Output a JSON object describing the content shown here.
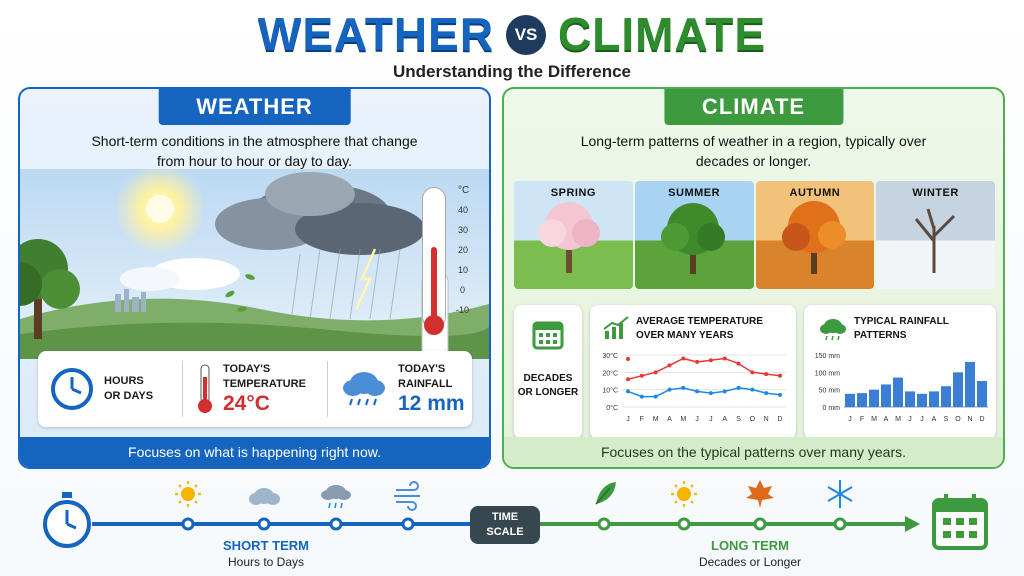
{
  "title": {
    "weather": "WEATHER",
    "vs": "VS",
    "climate": "CLIMATE"
  },
  "subtitle": "Understanding the Difference",
  "weather_panel": {
    "heading": "WEATHER",
    "description": "Short-term conditions in the atmosphere that change from hour to hour or day to day.",
    "thermometer": {
      "unit": "°C",
      "ticks": [
        "40",
        "30",
        "20",
        "10",
        "0",
        "-10"
      ]
    },
    "stats": {
      "duration": {
        "label_line1": "HOURS",
        "label_line2": "OR DAYS"
      },
      "temperature": {
        "label_line1": "TODAY'S",
        "label_line2": "TEMPERATURE",
        "value": "24°C"
      },
      "rainfall": {
        "label_line1": "TODAY'S",
        "label_line2": "RAINFALL",
        "value": "12 mm"
      }
    },
    "footer": "Focuses on what is happening right now.",
    "colors": {
      "primary": "#1565c0",
      "temp": "#d32f2f"
    }
  },
  "climate_panel": {
    "heading": "CLIMATE",
    "description": "Long-term patterns of weather in a region, typically over decades or longer.",
    "seasons": [
      "SPRING",
      "SUMMER",
      "AUTUMN",
      "WINTER"
    ],
    "decades": {
      "line1": "DECADES",
      "line2": "OR LONGER"
    },
    "footer": "Focuses on the typical patterns over many years.",
    "colors": {
      "primary": "#3e9a3e"
    }
  },
  "chart_data": [
    {
      "type": "line",
      "title": "AVERAGE TEMPERATURE OVER MANY YEARS",
      "categories": [
        "J",
        "F",
        "M",
        "A",
        "M",
        "J",
        "J",
        "A",
        "S",
        "O",
        "N",
        "D"
      ],
      "y_ticks": [
        "30°C",
        "20°C",
        "10°C",
        "0°C"
      ],
      "ylim": [
        0,
        30
      ],
      "series": [
        {
          "color": "#e53935",
          "values": [
            16,
            18,
            20,
            24,
            28,
            26,
            27,
            28,
            25,
            20,
            19,
            18
          ]
        },
        {
          "color": "#1e88e5",
          "values": [
            9,
            6,
            6,
            10,
            11,
            9,
            8,
            9,
            11,
            10,
            8,
            7
          ]
        }
      ],
      "legend_markers": [
        "#e53935",
        "#1e88e5"
      ]
    },
    {
      "type": "bar",
      "title": "TYPICAL RAINFALL PATTERNS",
      "categories": [
        "J",
        "F",
        "M",
        "A",
        "M",
        "J",
        "J",
        "A",
        "S",
        "O",
        "N",
        "D"
      ],
      "y_ticks": [
        "150 mm",
        "100 mm",
        "50 mm",
        "0 mm"
      ],
      "ylim": [
        0,
        150
      ],
      "values": [
        38,
        40,
        50,
        65,
        85,
        45,
        38,
        45,
        60,
        100,
        130,
        75
      ],
      "color": "#3a7fd5"
    }
  ],
  "timeline": {
    "time_scale": {
      "line1": "TIME",
      "line2": "SCALE"
    },
    "short_term": {
      "title": "SHORT TERM",
      "subtitle": "Hours to Days"
    },
    "long_term": {
      "title": "LONG TERM",
      "subtitle": "Decades or Longer"
    },
    "short_icons": [
      "sun-icon",
      "cloud-icon",
      "rain-cloud-icon",
      "wind-icon"
    ],
    "long_icons": [
      "leaf-icon",
      "sun-icon",
      "maple-leaf-icon",
      "snowflake-icon"
    ],
    "colors": {
      "short": "#1565c0",
      "long": "#3e9a3e",
      "badge": "#37474f"
    }
  }
}
